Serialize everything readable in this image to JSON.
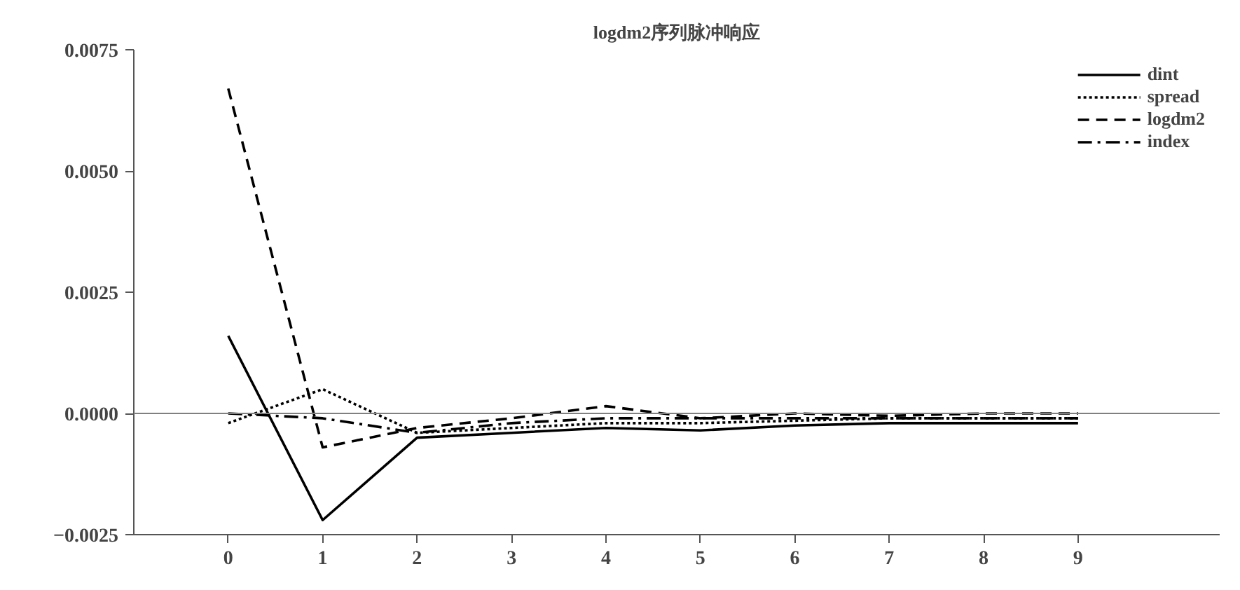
{
  "chart_data": {
    "type": "line",
    "title": "logdm2序列脉冲响应",
    "x": [
      0,
      1,
      2,
      3,
      4,
      5,
      6,
      7,
      8,
      9
    ],
    "series": [
      {
        "name": "dint",
        "color": "#000000",
        "line_style": "solid",
        "values": [
          0.0016,
          -0.0022,
          -0.0005,
          -0.0004,
          -0.0003,
          -0.00035,
          -0.00025,
          -0.0002,
          -0.0002,
          -0.0002
        ]
      },
      {
        "name": "spread",
        "color": "#000000",
        "line_style": "dotted",
        "values": [
          -0.0002,
          0.0005,
          -0.0004,
          -0.0003,
          -0.0002,
          -0.0002,
          -0.00015,
          -0.0001,
          -0.0001,
          -0.0001
        ]
      },
      {
        "name": "logdm2",
        "color": "#000000",
        "line_style": "dashed",
        "values": [
          0.0067,
          -0.0007,
          -0.0003,
          -0.0001,
          0.00015,
          -0.0001,
          0.0,
          -5e-05,
          0.0,
          0.0
        ]
      },
      {
        "name": "index",
        "color": "#000000",
        "line_style": "dashdot",
        "values": [
          0.0,
          -0.0001,
          -0.0004,
          -0.0002,
          -0.0001,
          -0.0001,
          -0.0001,
          -0.0001,
          -0.0001,
          -0.0001
        ]
      }
    ],
    "xlim": [
      -1,
      10.5
    ],
    "ylim": [
      -0.0025,
      0.0075
    ],
    "xticks": [
      0,
      1,
      2,
      3,
      4,
      5,
      6,
      7,
      8,
      9
    ],
    "yticks": [
      {
        "value": -0.0025,
        "label": "−0.0025"
      },
      {
        "value": 0,
        "label": "0.0000"
      },
      {
        "value": 0.0025,
        "label": "0.0025"
      },
      {
        "value": 0.005,
        "label": "0.0050"
      },
      {
        "value": 0.0075,
        "label": "0.0075"
      }
    ],
    "ref_lines": [
      {
        "axis": "y",
        "value": 0,
        "label": null,
        "color": "#808080"
      }
    ],
    "grid": false,
    "legend": "top right",
    "marker": "none"
  }
}
